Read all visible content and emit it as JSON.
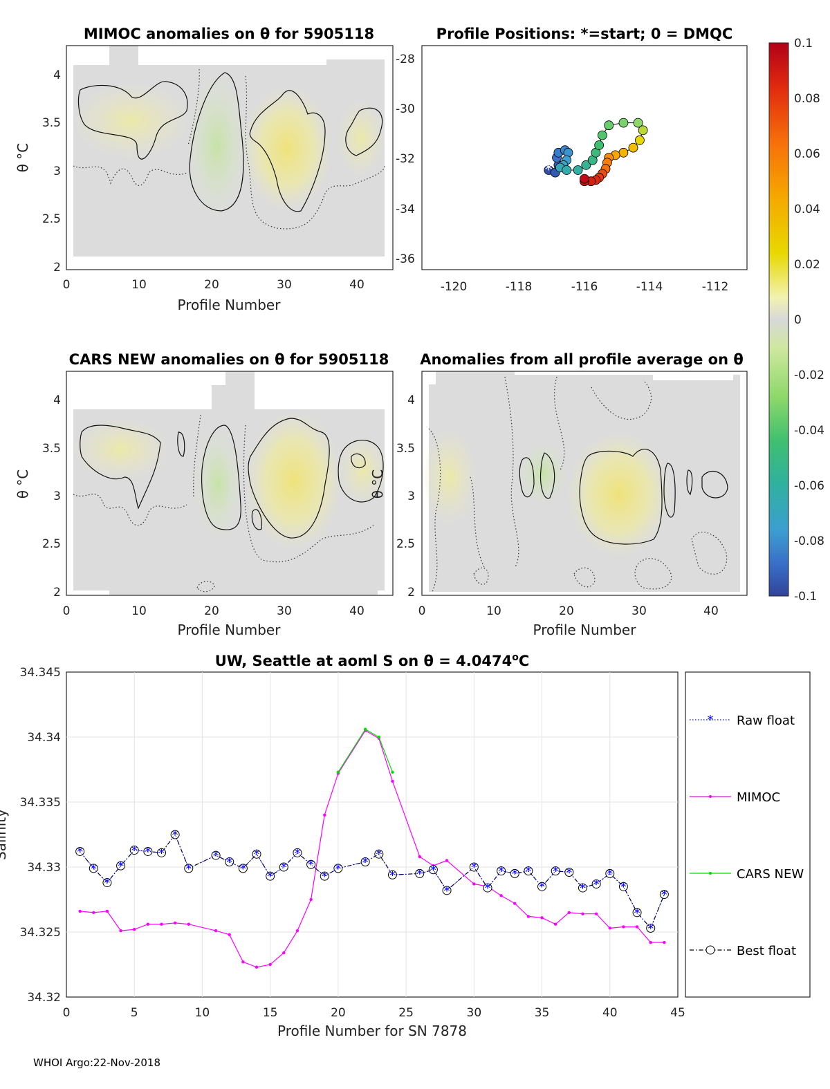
{
  "figure": {
    "footer": "WHOI Argo:22-Nov-2018"
  },
  "panels": {
    "mimoc": {
      "title": "MIMOC anomalies on θ  for 5905118",
      "xlabel": "Profile Number",
      "ylabel": "θ °C"
    },
    "positions": {
      "title": "Profile Positions: *=start; 0 = DMQC"
    },
    "cars": {
      "title": "CARS NEW anomalies on θ for 5905118",
      "xlabel": "Profile Number",
      "ylabel": "θ °C"
    },
    "avg": {
      "title": "Anomalies from all profile average on θ",
      "xlabel": "Profile Number",
      "ylabel": "θ °C"
    },
    "salinity": {
      "title_main": "UW, Seattle at aoml S on θ = 4.0474",
      "title_sup": "o",
      "title_end": "C",
      "xlabel": "Profile Number for SN 7878",
      "ylabel": "Salinity"
    }
  },
  "colorbar": {
    "labels": [
      "0.1",
      "0.08",
      "0.06",
      "0.04",
      "0.02",
      "0",
      "-0.02",
      "-0.04",
      "-0.06",
      "-0.08",
      "-0.1"
    ],
    "colors": [
      "#b30018",
      "#e02a0e",
      "#f7700a",
      "#f5a800",
      "#e8d800",
      "#f2f2b0",
      "#d8d8d8",
      "#cfe8a0",
      "#8ed86a",
      "#3fbf70",
      "#30b0a0",
      "#3c9fd0",
      "#3a70c8",
      "#30449a"
    ]
  },
  "chart_data": [
    {
      "id": "mimoc",
      "type": "heatmap",
      "title": "MIMOC anomalies on θ  for 5905118",
      "xlabel": "Profile Number",
      "ylabel": "θ °C",
      "xlim": [
        0,
        45
      ],
      "ylim": [
        2,
        4.2
      ],
      "xticks": [
        "0",
        "10",
        "20",
        "30",
        "40"
      ],
      "yticks": [
        "2",
        "2.5",
        "3",
        "3.5",
        "4"
      ],
      "highlights": [
        {
          "x": [
            2,
            14
          ],
          "y": [
            3.1,
            3.85
          ],
          "value": 0.01
        },
        {
          "x": [
            19,
            26
          ],
          "y": [
            2.6,
            3.8
          ],
          "value": -0.01
        },
        {
          "x": [
            27,
            36
          ],
          "y": [
            2.7,
            3.75
          ],
          "value": 0.015
        },
        {
          "x": [
            38,
            44
          ],
          "y": [
            2.9,
            3.6
          ],
          "value": 0.01
        }
      ]
    },
    {
      "id": "positions",
      "type": "scatter",
      "title": "Profile Positions: *=start; 0 = DMQC",
      "xlim": [
        -121,
        -111
      ],
      "ylim": [
        -36.5,
        -27.5
      ],
      "xticks": [
        "-120",
        "-118",
        "-116",
        "-114",
        "-112"
      ],
      "yticks": [
        "-28",
        "-30",
        "-32",
        "-34",
        "-36"
      ],
      "start_marker": "*",
      "lon": [
        -117.1,
        -116.9,
        -116.8,
        -116.85,
        -116.8,
        -116.6,
        -116.5,
        -116.55,
        -116.65,
        -116.75,
        -116.55,
        -116.2,
        -115.95,
        -115.75,
        -115.65,
        -115.55,
        -115.45,
        -115.25,
        -114.8,
        -114.35,
        -114.2,
        -114.3,
        -114.5,
        -114.8,
        -115.05,
        -115.25,
        -115.3,
        -115.35,
        -115.45,
        -115.55,
        -115.65,
        -115.8,
        -116.0,
        -116.0
      ],
      "lat": [
        -32.5,
        -32.6,
        -32.3,
        -32.0,
        -31.8,
        -31.7,
        -31.8,
        -32.1,
        -32.3,
        -32.4,
        -32.5,
        -32.5,
        -32.3,
        -32.1,
        -31.8,
        -31.5,
        -31.1,
        -30.7,
        -30.6,
        -30.6,
        -30.9,
        -31.3,
        -31.6,
        -31.8,
        -31.9,
        -32.0,
        -32.2,
        -32.45,
        -32.65,
        -32.8,
        -32.9,
        -32.95,
        -32.95,
        -32.85
      ],
      "color_values": [
        -0.095,
        -0.09,
        -0.085,
        -0.08,
        -0.075,
        -0.07,
        -0.065,
        -0.06,
        -0.055,
        -0.05,
        -0.045,
        -0.04,
        -0.035,
        -0.03,
        -0.025,
        -0.02,
        -0.015,
        -0.01,
        -0.005,
        0.0,
        0.01,
        0.02,
        0.03,
        0.035,
        0.04,
        0.05,
        0.055,
        0.06,
        0.07,
        0.075,
        0.08,
        0.085,
        0.09,
        0.095
      ]
    },
    {
      "id": "cars",
      "type": "heatmap",
      "title": "CARS NEW anomalies on θ for 5905118",
      "xlabel": "Profile Number",
      "ylabel": "θ °C",
      "xlim": [
        0,
        45
      ],
      "ylim": [
        2,
        4.2
      ],
      "xticks": [
        "0",
        "10",
        "20",
        "30",
        "40"
      ],
      "yticks": [
        "2",
        "2.5",
        "3",
        "3.5",
        "4"
      ],
      "highlights": [
        {
          "x": [
            2,
            13
          ],
          "y": [
            3.15,
            3.75
          ],
          "value": 0.01
        },
        {
          "x": [
            19,
            24
          ],
          "y": [
            2.75,
            3.65
          ],
          "value": -0.01
        },
        {
          "x": [
            27,
            36
          ],
          "y": [
            2.55,
            3.8
          ],
          "value": 0.02
        },
        {
          "x": [
            38,
            44
          ],
          "y": [
            2.95,
            3.55
          ],
          "value": 0.01
        }
      ]
    },
    {
      "id": "avg",
      "type": "heatmap",
      "title": "Anomalies from all profile average on θ",
      "xlabel": "Profile Number",
      "ylabel": "θ °C",
      "xlim": [
        0,
        45
      ],
      "ylim": [
        2,
        4.2
      ],
      "xticks": [
        "0",
        "10",
        "20",
        "30",
        "40"
      ],
      "yticks": [
        "2",
        "2.5",
        "3",
        "3.5",
        "4"
      ],
      "highlights": [
        {
          "x": [
            23,
            34
          ],
          "y": [
            2.55,
            3.55
          ],
          "value": 0.02
        },
        {
          "x": [
            13,
            19
          ],
          "y": [
            3.0,
            3.45
          ],
          "value": -0.005
        }
      ]
    },
    {
      "id": "salinity",
      "type": "line",
      "title": "UW, Seattle at aoml S on θ = 4.0474°C",
      "xlabel": "Profile Number for SN 7878",
      "ylabel": "Salinity",
      "xlim": [
        0,
        45
      ],
      "ylim": [
        34.32,
        34.345
      ],
      "xticks": [
        "0",
        "5",
        "10",
        "15",
        "20",
        "25",
        "30",
        "35",
        "40",
        "45"
      ],
      "yticks": [
        "34.32",
        "34.325",
        "34.33",
        "34.335",
        "34.34",
        "34.345"
      ],
      "grid": true,
      "legend": [
        "Raw float",
        "MIMOC",
        "CARS NEW",
        "Best float"
      ],
      "series": [
        {
          "name": "Raw float",
          "color": "#0000ff",
          "x": [
            1,
            2,
            3,
            4,
            5,
            6,
            7,
            8,
            9,
            11,
            12,
            13,
            14,
            15,
            16,
            17,
            18,
            19,
            20,
            22,
            23,
            24,
            26,
            27,
            28,
            30,
            31,
            32,
            33,
            34,
            35,
            36,
            37,
            38,
            39,
            40,
            41,
            42,
            43,
            44
          ],
          "y": [
            34.3312,
            34.3299,
            34.3288,
            34.3301,
            34.3313,
            34.3312,
            34.3311,
            34.3325,
            34.3299,
            34.3309,
            34.3304,
            34.3299,
            34.331,
            34.3293,
            34.33,
            34.3311,
            34.3302,
            34.3293,
            34.3299,
            34.3304,
            34.331,
            34.3294,
            34.3295,
            34.3298,
            34.3282,
            34.33,
            34.3284,
            34.3297,
            34.3295,
            34.3297,
            34.3285,
            34.3297,
            34.3296,
            34.3284,
            34.3287,
            34.3295,
            34.3285,
            34.3265,
            34.3253,
            34.3279
          ]
        },
        {
          "name": "MIMOC",
          "color": "#ff00ff",
          "x": [
            1,
            2,
            3,
            4,
            5,
            6,
            7,
            8,
            9,
            11,
            12,
            13,
            14,
            15,
            16,
            17,
            18,
            19,
            20,
            22,
            23,
            24,
            26,
            27,
            28,
            30,
            31,
            32,
            33,
            34,
            35,
            36,
            37,
            38,
            39,
            40,
            41,
            42,
            43,
            44
          ],
          "y": [
            34.3266,
            34.3265,
            34.3266,
            34.3251,
            34.3252,
            34.3256,
            34.3256,
            34.3257,
            34.3256,
            34.3251,
            34.3248,
            34.3227,
            34.3223,
            34.3225,
            34.3234,
            34.3251,
            34.3275,
            34.334,
            34.3372,
            34.3405,
            34.3399,
            34.3366,
            34.3308,
            34.3301,
            34.3305,
            34.3287,
            34.3285,
            34.3278,
            34.3272,
            34.3262,
            34.3261,
            34.3256,
            34.3265,
            34.3264,
            34.3264,
            34.3253,
            34.3254,
            34.3254,
            34.3242,
            34.3242
          ]
        },
        {
          "name": "CARS NEW",
          "color": "#00dd00",
          "x": [
            20,
            22,
            23,
            24
          ],
          "y": [
            34.3373,
            34.3406,
            34.34,
            34.3373
          ]
        },
        {
          "name": "Best float",
          "color": "#000000",
          "x": [
            1,
            2,
            3,
            4,
            5,
            6,
            7,
            8,
            9,
            11,
            12,
            13,
            14,
            15,
            16,
            17,
            18,
            19,
            20,
            22,
            23,
            24,
            26,
            27,
            28,
            30,
            31,
            32,
            33,
            34,
            35,
            36,
            37,
            38,
            39,
            40,
            41,
            42,
            43,
            44
          ],
          "y": [
            34.3312,
            34.3299,
            34.3288,
            34.3301,
            34.3313,
            34.3312,
            34.3311,
            34.3325,
            34.3299,
            34.3309,
            34.3304,
            34.3299,
            34.331,
            34.3293,
            34.33,
            34.3311,
            34.3302,
            34.3293,
            34.3299,
            34.3304,
            34.331,
            34.3294,
            34.3295,
            34.3298,
            34.3282,
            34.33,
            34.3284,
            34.3297,
            34.3295,
            34.3297,
            34.3285,
            34.3297,
            34.3296,
            34.3284,
            34.3287,
            34.3295,
            34.3285,
            34.3265,
            34.3253,
            34.3279
          ]
        }
      ]
    }
  ]
}
